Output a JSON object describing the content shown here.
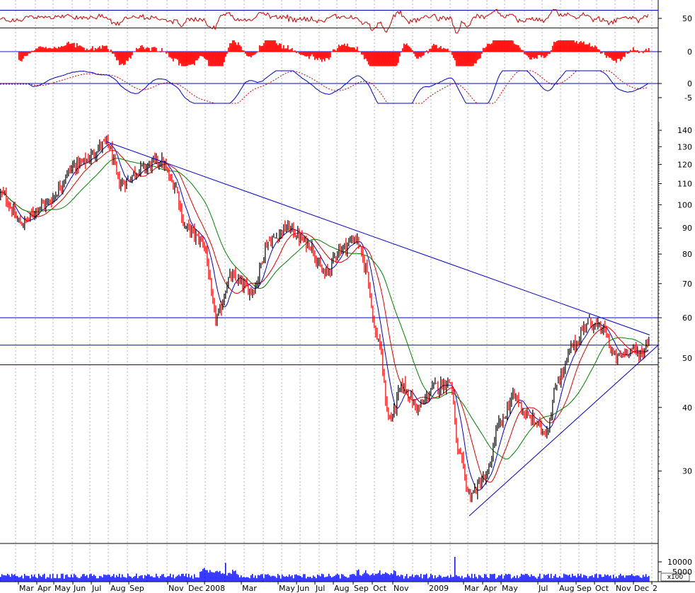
{
  "chart_data": {
    "type": "candlestick",
    "colors": {
      "up_candle": "#000000",
      "down_candle": "#ff0000",
      "ma_fast": "#0000cc",
      "ma_medium": "#dd0000",
      "ma_slow": "#008000",
      "trendline": "#0000cc",
      "level_line": "#0000cc",
      "rsi_line": "#cc0000",
      "histogram": "#ff0000",
      "oscillator": "#0000cc",
      "oscillator_signal": "#cc0000",
      "volume": "#0000ff",
      "grid": "#b0b0b0"
    },
    "price_axis": {
      "scale": "log",
      "range": [
        22,
        150
      ],
      "tick_labels": [
        "140",
        "130",
        "120",
        "110",
        "100",
        "90",
        "80",
        "70",
        "60",
        "50",
        "40",
        "30"
      ]
    },
    "time_axis": {
      "labels": [
        "Mar",
        "Apr",
        "May",
        "Jun",
        "Jul",
        "Aug",
        "Sep",
        "Nov",
        "Dec",
        "2008",
        "Mar",
        "May",
        "Jun",
        "Jul",
        "Aug",
        "Sep",
        "Oct",
        "Nov",
        "2009",
        "Mar",
        "Apr",
        "May",
        "Jul",
        "Aug",
        "Sep",
        "Oct",
        "Nov",
        "Dec",
        "2"
      ]
    },
    "price_anchors": [
      {
        "t": 0,
        "v": 105
      },
      {
        "t": 30,
        "v": 92
      },
      {
        "t": 60,
        "v": 100
      },
      {
        "t": 110,
        "v": 120
      },
      {
        "t": 150,
        "v": 132
      },
      {
        "t": 170,
        "v": 110
      },
      {
        "t": 200,
        "v": 118
      },
      {
        "t": 225,
        "v": 122
      },
      {
        "t": 245,
        "v": 110
      },
      {
        "t": 262,
        "v": 90
      },
      {
        "t": 285,
        "v": 85
      },
      {
        "t": 305,
        "v": 60
      },
      {
        "t": 325,
        "v": 72
      },
      {
        "t": 355,
        "v": 68
      },
      {
        "t": 380,
        "v": 85
      },
      {
        "t": 405,
        "v": 90
      },
      {
        "t": 435,
        "v": 84
      },
      {
        "t": 458,
        "v": 73
      },
      {
        "t": 480,
        "v": 82
      },
      {
        "t": 502,
        "v": 86
      },
      {
        "t": 515,
        "v": 76
      },
      {
        "t": 532,
        "v": 55
      },
      {
        "t": 550,
        "v": 38
      },
      {
        "t": 568,
        "v": 44
      },
      {
        "t": 590,
        "v": 40
      },
      {
        "t": 615,
        "v": 44
      },
      {
        "t": 635,
        "v": 45
      },
      {
        "t": 648,
        "v": 32
      },
      {
        "t": 663,
        "v": 27
      },
      {
        "t": 685,
        "v": 29
      },
      {
        "t": 705,
        "v": 37
      },
      {
        "t": 725,
        "v": 42
      },
      {
        "t": 748,
        "v": 38
      },
      {
        "t": 770,
        "v": 36
      },
      {
        "t": 790,
        "v": 46
      },
      {
        "t": 810,
        "v": 53
      },
      {
        "t": 830,
        "v": 59
      },
      {
        "t": 850,
        "v": 57
      },
      {
        "t": 870,
        "v": 50
      },
      {
        "t": 890,
        "v": 52
      },
      {
        "t": 905,
        "v": 51
      },
      {
        "t": 918,
        "v": 55
      }
    ],
    "resistance_levels": [
      60,
      53,
      48.5
    ],
    "trendlines": [
      {
        "name": "downtrend",
        "from": {
          "t": 150,
          "v": 133
        },
        "to": {
          "t": 918,
          "v": 55.5
        }
      },
      {
        "name": "uptrend",
        "from": {
          "t": 663,
          "v": 24.5
        },
        "to": {
          "t": 930,
          "v": 53
        }
      }
    ],
    "rsi_panel": {
      "tick_labels": [
        "50"
      ],
      "level_lines": [
        65,
        35
      ]
    },
    "histogram_panel": {
      "tick_labels": [
        "0"
      ]
    },
    "oscillator_panel": {
      "tick_labels": [
        "0",
        "-5"
      ]
    },
    "volume_panel": {
      "tick_labels": [
        "10000",
        "5000"
      ],
      "multiplier_label": "x100",
      "spikes": [
        {
          "t": 318,
          "v": 9500
        },
        {
          "t": 642,
          "v": 12500
        }
      ]
    }
  }
}
